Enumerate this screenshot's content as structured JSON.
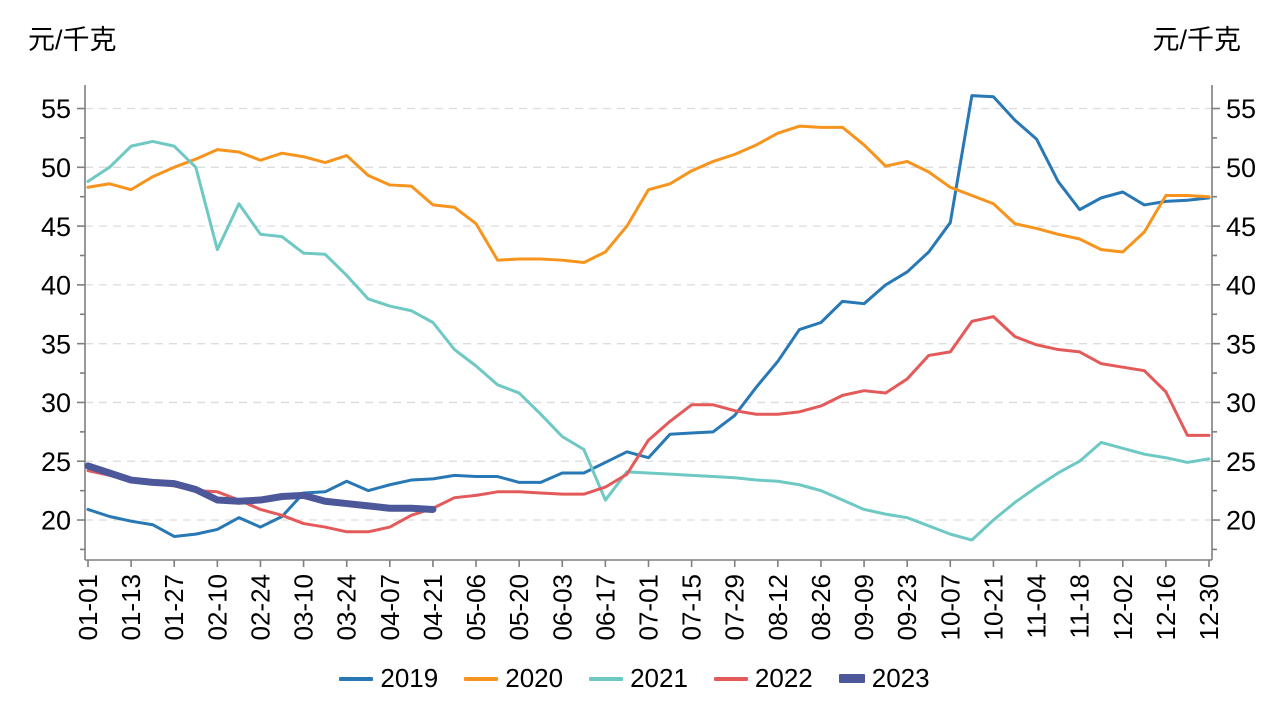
{
  "chart": {
    "unit_left": "元/千克",
    "unit_right": "元/千克"
  },
  "chart_data": {
    "type": "line",
    "title": "",
    "xlabel": "",
    "ylabel_left": "元/千克",
    "ylabel_right": "元/千克",
    "ylim": [
      16.6,
      57.0
    ],
    "grid": "horizontal-dashed",
    "legend_position": "bottom-center",
    "y_ticks": [
      55,
      50,
      45,
      40,
      35,
      30,
      25,
      20
    ],
    "x_tick_labels": [
      "01-01",
      "01-13",
      "01-27",
      "02-10",
      "02-24",
      "03-10",
      "03-24",
      "04-07",
      "04-21",
      "05-06",
      "05-20",
      "06-03",
      "06-17",
      "07-01",
      "07-15",
      "07-29",
      "08-12",
      "08-26",
      "09-09",
      "09-23",
      "10-07",
      "10-21",
      "11-04",
      "11-18",
      "12-02",
      "12-16",
      "12-30"
    ],
    "points_per_label": 2,
    "series": [
      {
        "name": "2019",
        "color": "#2878b5",
        "width": 3,
        "values": [
          20.9,
          20.3,
          19.9,
          19.6,
          18.6,
          18.8,
          19.2,
          20.2,
          19.4,
          20.3,
          22.3,
          22.4,
          23.3,
          22.5,
          23.0,
          23.4,
          23.5,
          23.8,
          23.7,
          23.7,
          23.2,
          23.2,
          24.0,
          24.0,
          24.9,
          25.8,
          25.3,
          27.3,
          27.4,
          27.5,
          28.9,
          31.3,
          33.5,
          36.2,
          36.8,
          38.6,
          38.4,
          40.0,
          41.1,
          42.8,
          45.3,
          56.1,
          56.0,
          54.0,
          52.4,
          48.8,
          46.4,
          47.4,
          47.9,
          46.8,
          47.1,
          47.2,
          47.4
        ]
      },
      {
        "name": "2020",
        "color": "#f7941e",
        "width": 3,
        "values": [
          48.3,
          48.6,
          48.1,
          49.2,
          50.0,
          50.7,
          51.5,
          51.3,
          50.6,
          51.2,
          50.9,
          50.4,
          51.0,
          49.3,
          48.5,
          48.4,
          46.8,
          46.6,
          45.2,
          42.1,
          42.2,
          42.2,
          42.1,
          41.9,
          42.8,
          45.0,
          48.1,
          48.6,
          49.7,
          50.5,
          51.1,
          51.9,
          52.9,
          53.5,
          53.4,
          53.4,
          51.9,
          50.1,
          50.5,
          49.6,
          48.3,
          47.6,
          46.9,
          45.2,
          44.8,
          44.3,
          43.9,
          43.0,
          42.8,
          44.5,
          47.6,
          47.6,
          47.5
        ]
      },
      {
        "name": "2021",
        "color": "#6ec9c4",
        "width": 3,
        "values": [
          48.8,
          50.0,
          51.8,
          52.2,
          51.8,
          50.0,
          43.0,
          46.9,
          44.3,
          44.1,
          42.7,
          42.6,
          40.8,
          38.8,
          38.2,
          37.8,
          36.8,
          34.5,
          33.1,
          31.5,
          30.8,
          29.0,
          27.1,
          26.0,
          21.7,
          24.1,
          24.0,
          23.9,
          23.8,
          23.7,
          23.6,
          23.4,
          23.3,
          23.0,
          22.5,
          21.7,
          20.9,
          20.5,
          20.2,
          19.5,
          18.8,
          18.3,
          20.0,
          21.5,
          22.8,
          24.0,
          25.0,
          26.6,
          26.1,
          25.6,
          25.3,
          24.9,
          25.2
        ]
      },
      {
        "name": "2022",
        "color": "#e45a5a",
        "width": 3,
        "values": [
          24.2,
          23.8,
          23.3,
          23.1,
          22.9,
          22.5,
          22.4,
          21.7,
          20.9,
          20.4,
          19.7,
          19.4,
          19.0,
          19.0,
          19.4,
          20.4,
          21.0,
          21.9,
          22.1,
          22.4,
          22.4,
          22.3,
          22.2,
          22.2,
          22.8,
          23.9,
          26.8,
          28.4,
          29.8,
          29.8,
          29.3,
          29.0,
          29.0,
          29.2,
          29.7,
          30.6,
          31.0,
          30.8,
          32.0,
          34.0,
          34.3,
          36.9,
          37.3,
          35.6,
          34.9,
          34.5,
          34.3,
          33.3,
          33.0,
          32.7,
          30.9,
          27.2,
          27.2
        ]
      },
      {
        "name": "2023",
        "color": "#4d589b",
        "width": 7,
        "values": [
          24.6,
          24.0,
          23.4,
          23.2,
          23.1,
          22.6,
          21.7,
          21.6,
          21.7,
          22.0,
          22.1,
          21.6,
          21.4,
          21.2,
          21.0,
          21.0,
          20.9
        ]
      }
    ]
  }
}
